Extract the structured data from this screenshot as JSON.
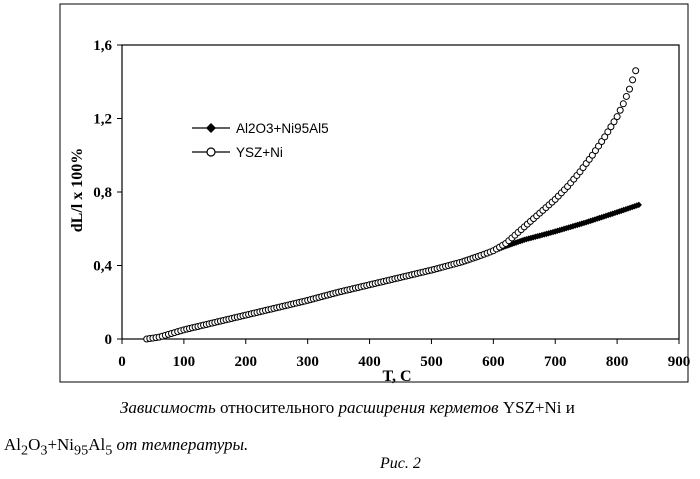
{
  "chart_data": {
    "type": "scatter",
    "title": "",
    "xlabel": "T, C",
    "ylabel": "dL/l x 100%",
    "xlim": [
      0,
      900
    ],
    "ylim": [
      0,
      1.6
    ],
    "xticks": [
      0,
      100,
      200,
      300,
      400,
      500,
      600,
      700,
      800,
      900
    ],
    "xtick_labels": [
      "0",
      "100",
      "200",
      "300",
      "400",
      "500",
      "600",
      "700",
      "800",
      "900"
    ],
    "yticks": [
      0,
      0.4,
      0.8,
      1.2,
      1.6
    ],
    "ytick_labels": [
      "0",
      "0,4",
      "0,8",
      "1,2",
      "1,6"
    ],
    "grid": false,
    "legend_position": "upper-left-inside",
    "series": [
      {
        "name": "Al2O3+Ni95Al5",
        "marker": "filled-diamond",
        "color": "#000000",
        "x": [
          40,
          60,
          80,
          100,
          150,
          200,
          250,
          300,
          350,
          400,
          450,
          500,
          550,
          580,
          600,
          620,
          650,
          700,
          750,
          800,
          835
        ],
        "y": [
          0.0,
          0.01,
          0.03,
          0.05,
          0.09,
          0.13,
          0.17,
          0.21,
          0.255,
          0.295,
          0.335,
          0.375,
          0.42,
          0.455,
          0.48,
          0.505,
          0.54,
          0.585,
          0.635,
          0.69,
          0.73
        ]
      },
      {
        "name": "YSZ+Ni",
        "marker": "open-circle",
        "color": "#000000",
        "x": [
          40,
          60,
          80,
          100,
          150,
          200,
          250,
          300,
          350,
          400,
          450,
          500,
          550,
          580,
          600,
          620,
          640,
          660,
          680,
          700,
          720,
          740,
          760,
          780,
          800,
          810,
          820,
          830
        ],
        "y": [
          0.0,
          0.01,
          0.03,
          0.05,
          0.09,
          0.13,
          0.17,
          0.21,
          0.255,
          0.295,
          0.335,
          0.375,
          0.42,
          0.455,
          0.48,
          0.52,
          0.58,
          0.64,
          0.7,
          0.76,
          0.83,
          0.91,
          1.0,
          1.1,
          1.21,
          1.28,
          1.36,
          1.46
        ]
      }
    ]
  },
  "caption": {
    "line1": [
      {
        "text": "Зависимость",
        "italic": true
      },
      {
        "text": " относительного ",
        "italic": false
      },
      {
        "text": "расширения",
        "italic": true
      },
      {
        "text": " ",
        "italic": false
      },
      {
        "text": "керметов",
        "italic": true
      },
      {
        "text": " YSZ+Ni и",
        "italic": false
      }
    ],
    "line2_prefix": "Al",
    "line2_sub1": "2",
    "line2_mid1": "O",
    "line2_sub2": "3",
    "line2_mid2": "+Ni",
    "line2_sub3": "95",
    "line2_mid3": "Al",
    "line2_sub4": "5",
    "line2_suffix": " от температуры.",
    "figure_label": "Рис. 2"
  }
}
